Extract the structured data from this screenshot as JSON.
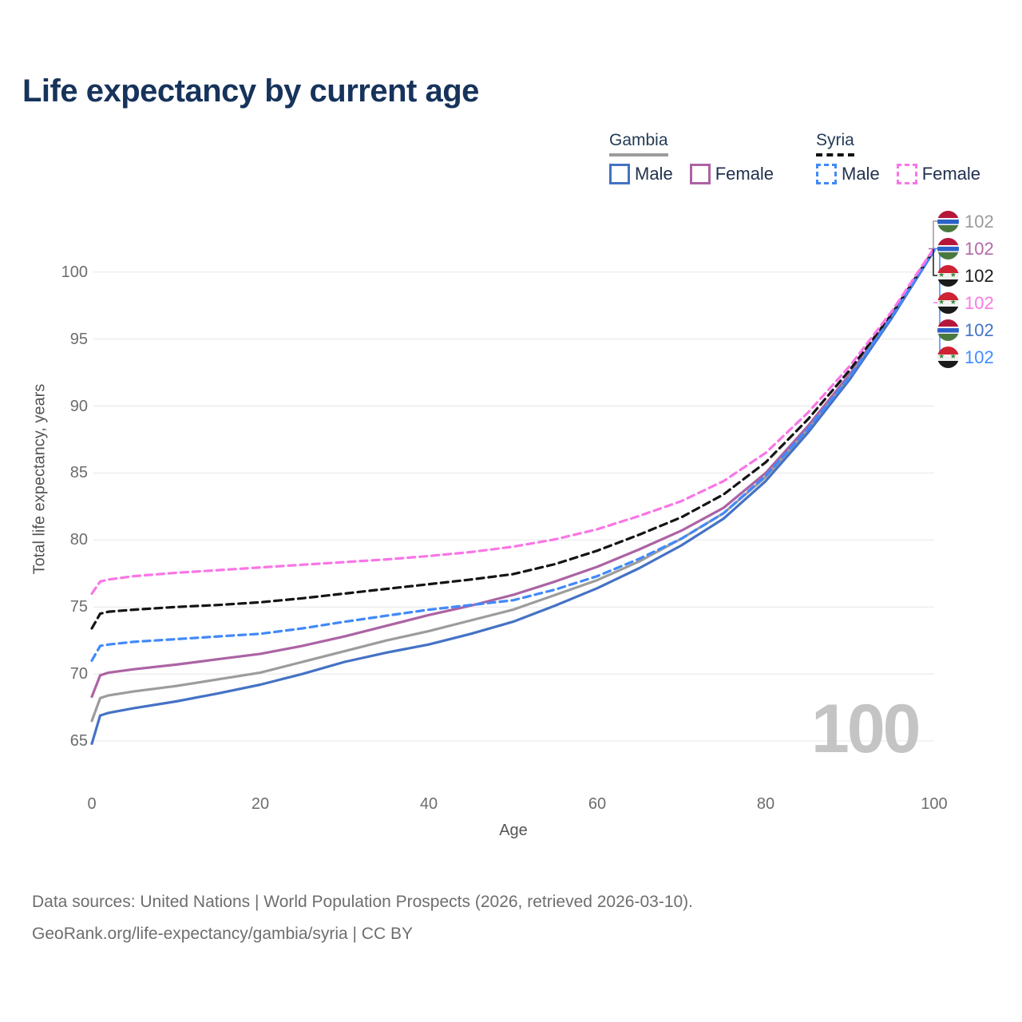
{
  "title": "Life expectancy by current age",
  "legend": {
    "groups": [
      {
        "label": "Gambia",
        "line_style": "solid",
        "items": [
          {
            "label": "Male",
            "series": "gambia_male"
          },
          {
            "label": "Female",
            "series": "gambia_female"
          }
        ]
      },
      {
        "label": "Syria",
        "line_style": "dashed",
        "items": [
          {
            "label": "Male",
            "series": "syria_male"
          },
          {
            "label": "Female",
            "series": "syria_female"
          }
        ]
      }
    ]
  },
  "y_axis": {
    "title": "Total life expectancy, years",
    "ticks": [
      65,
      70,
      75,
      80,
      85,
      90,
      95,
      100
    ]
  },
  "x_axis": {
    "title": "Age",
    "ticks": [
      0,
      20,
      40,
      60,
      80,
      100
    ]
  },
  "watermark": "100",
  "footer": {
    "line1": "Data sources: United Nations | World Population Prospects (2026, retrieved 2026-03-10).",
    "line2": "GeoRank.org/life-expectancy/gambia/syria | CC BY"
  },
  "chart_data": {
    "type": "line",
    "title": "Life expectancy by current age",
    "xlabel": "Age",
    "ylabel": "Total life expectancy, years",
    "xlim": [
      0,
      100
    ],
    "ylim": [
      63,
      104
    ],
    "grid": "horizontal",
    "legend_position": "top-right",
    "x": [
      0,
      1,
      2,
      5,
      10,
      15,
      20,
      25,
      30,
      35,
      40,
      45,
      50,
      55,
      60,
      65,
      70,
      75,
      80,
      85,
      90,
      95,
      100
    ],
    "series": [
      {
        "id": "gambia_female",
        "name": "Gambia Female",
        "country": "Gambia",
        "sex": "Female",
        "color": "#ac63a4",
        "dashed": false,
        "values": [
          68.3,
          69.9,
          70.1,
          70.35,
          70.7,
          71.1,
          71.5,
          72.1,
          72.8,
          73.6,
          74.4,
          75.1,
          75.9,
          76.9,
          78.0,
          79.3,
          80.7,
          82.4,
          85.0,
          88.5,
          92.4,
          96.8,
          101.7
        ]
      },
      {
        "id": "gambia_total",
        "name": "Gambia Total",
        "country": "Gambia",
        "sex": "Both",
        "color": "#9c9c9c",
        "dashed": false,
        "values": [
          66.5,
          68.2,
          68.4,
          68.7,
          69.1,
          69.6,
          70.1,
          70.9,
          71.7,
          72.5,
          73.2,
          74.0,
          74.8,
          75.9,
          77.0,
          78.4,
          80.1,
          82.0,
          84.7,
          88.2,
          92.2,
          96.7,
          101.65
        ]
      },
      {
        "id": "gambia_male",
        "name": "Gambia Male",
        "country": "Gambia",
        "sex": "Male",
        "color": "#4472c4",
        "dashed": false,
        "values": [
          64.8,
          66.9,
          67.1,
          67.45,
          67.95,
          68.55,
          69.2,
          70.0,
          70.9,
          71.6,
          72.2,
          73.0,
          73.9,
          75.1,
          76.4,
          77.9,
          79.6,
          81.6,
          84.4,
          88.0,
          92.0,
          96.6,
          101.6
        ]
      },
      {
        "id": "syria_total",
        "name": "Syria Total",
        "country": "Syria",
        "sex": "Both",
        "color": "#141414",
        "dashed": true,
        "values": [
          73.4,
          74.5,
          74.65,
          74.8,
          75.0,
          75.15,
          75.35,
          75.65,
          76.0,
          76.35,
          76.7,
          77.05,
          77.45,
          78.2,
          79.2,
          80.4,
          81.7,
          83.4,
          85.8,
          89.0,
          92.7,
          96.9,
          101.7
        ]
      },
      {
        "id": "syria_male",
        "name": "Syria Male",
        "country": "Syria",
        "sex": "Male",
        "color": "#4189fa",
        "dashed": true,
        "values": [
          71.0,
          72.1,
          72.2,
          72.4,
          72.6,
          72.8,
          73.0,
          73.4,
          73.9,
          74.35,
          74.8,
          75.15,
          75.5,
          76.3,
          77.3,
          78.6,
          80.1,
          82.0,
          84.8,
          88.3,
          92.2,
          96.7,
          101.65
        ]
      },
      {
        "id": "syria_female",
        "name": "Syria Female",
        "country": "Syria",
        "sex": "Female",
        "color": "#fa75e6",
        "dashed": true,
        "values": [
          76.0,
          76.9,
          77.05,
          77.3,
          77.55,
          77.75,
          77.95,
          78.15,
          78.35,
          78.55,
          78.8,
          79.1,
          79.5,
          80.05,
          80.8,
          81.8,
          82.9,
          84.4,
          86.5,
          89.5,
          93.0,
          97.1,
          101.8
        ]
      }
    ],
    "end_labels": [
      {
        "series": "gambia_total",
        "flag": "gambia",
        "value": "102",
        "color": "#9a9a9a"
      },
      {
        "series": "gambia_female",
        "flag": "gambia",
        "value": "102",
        "color": "#b269a8"
      },
      {
        "series": "syria_total",
        "flag": "syria",
        "value": "102",
        "color": "#1c1c1c"
      },
      {
        "series": "syria_female",
        "flag": "syria",
        "value": "102",
        "color": "#fb78e2"
      },
      {
        "series": "gambia_male",
        "flag": "gambia",
        "value": "102",
        "color": "#4273c8"
      },
      {
        "series": "syria_male",
        "flag": "syria",
        "value": "102",
        "color": "#3f8cff"
      }
    ]
  }
}
